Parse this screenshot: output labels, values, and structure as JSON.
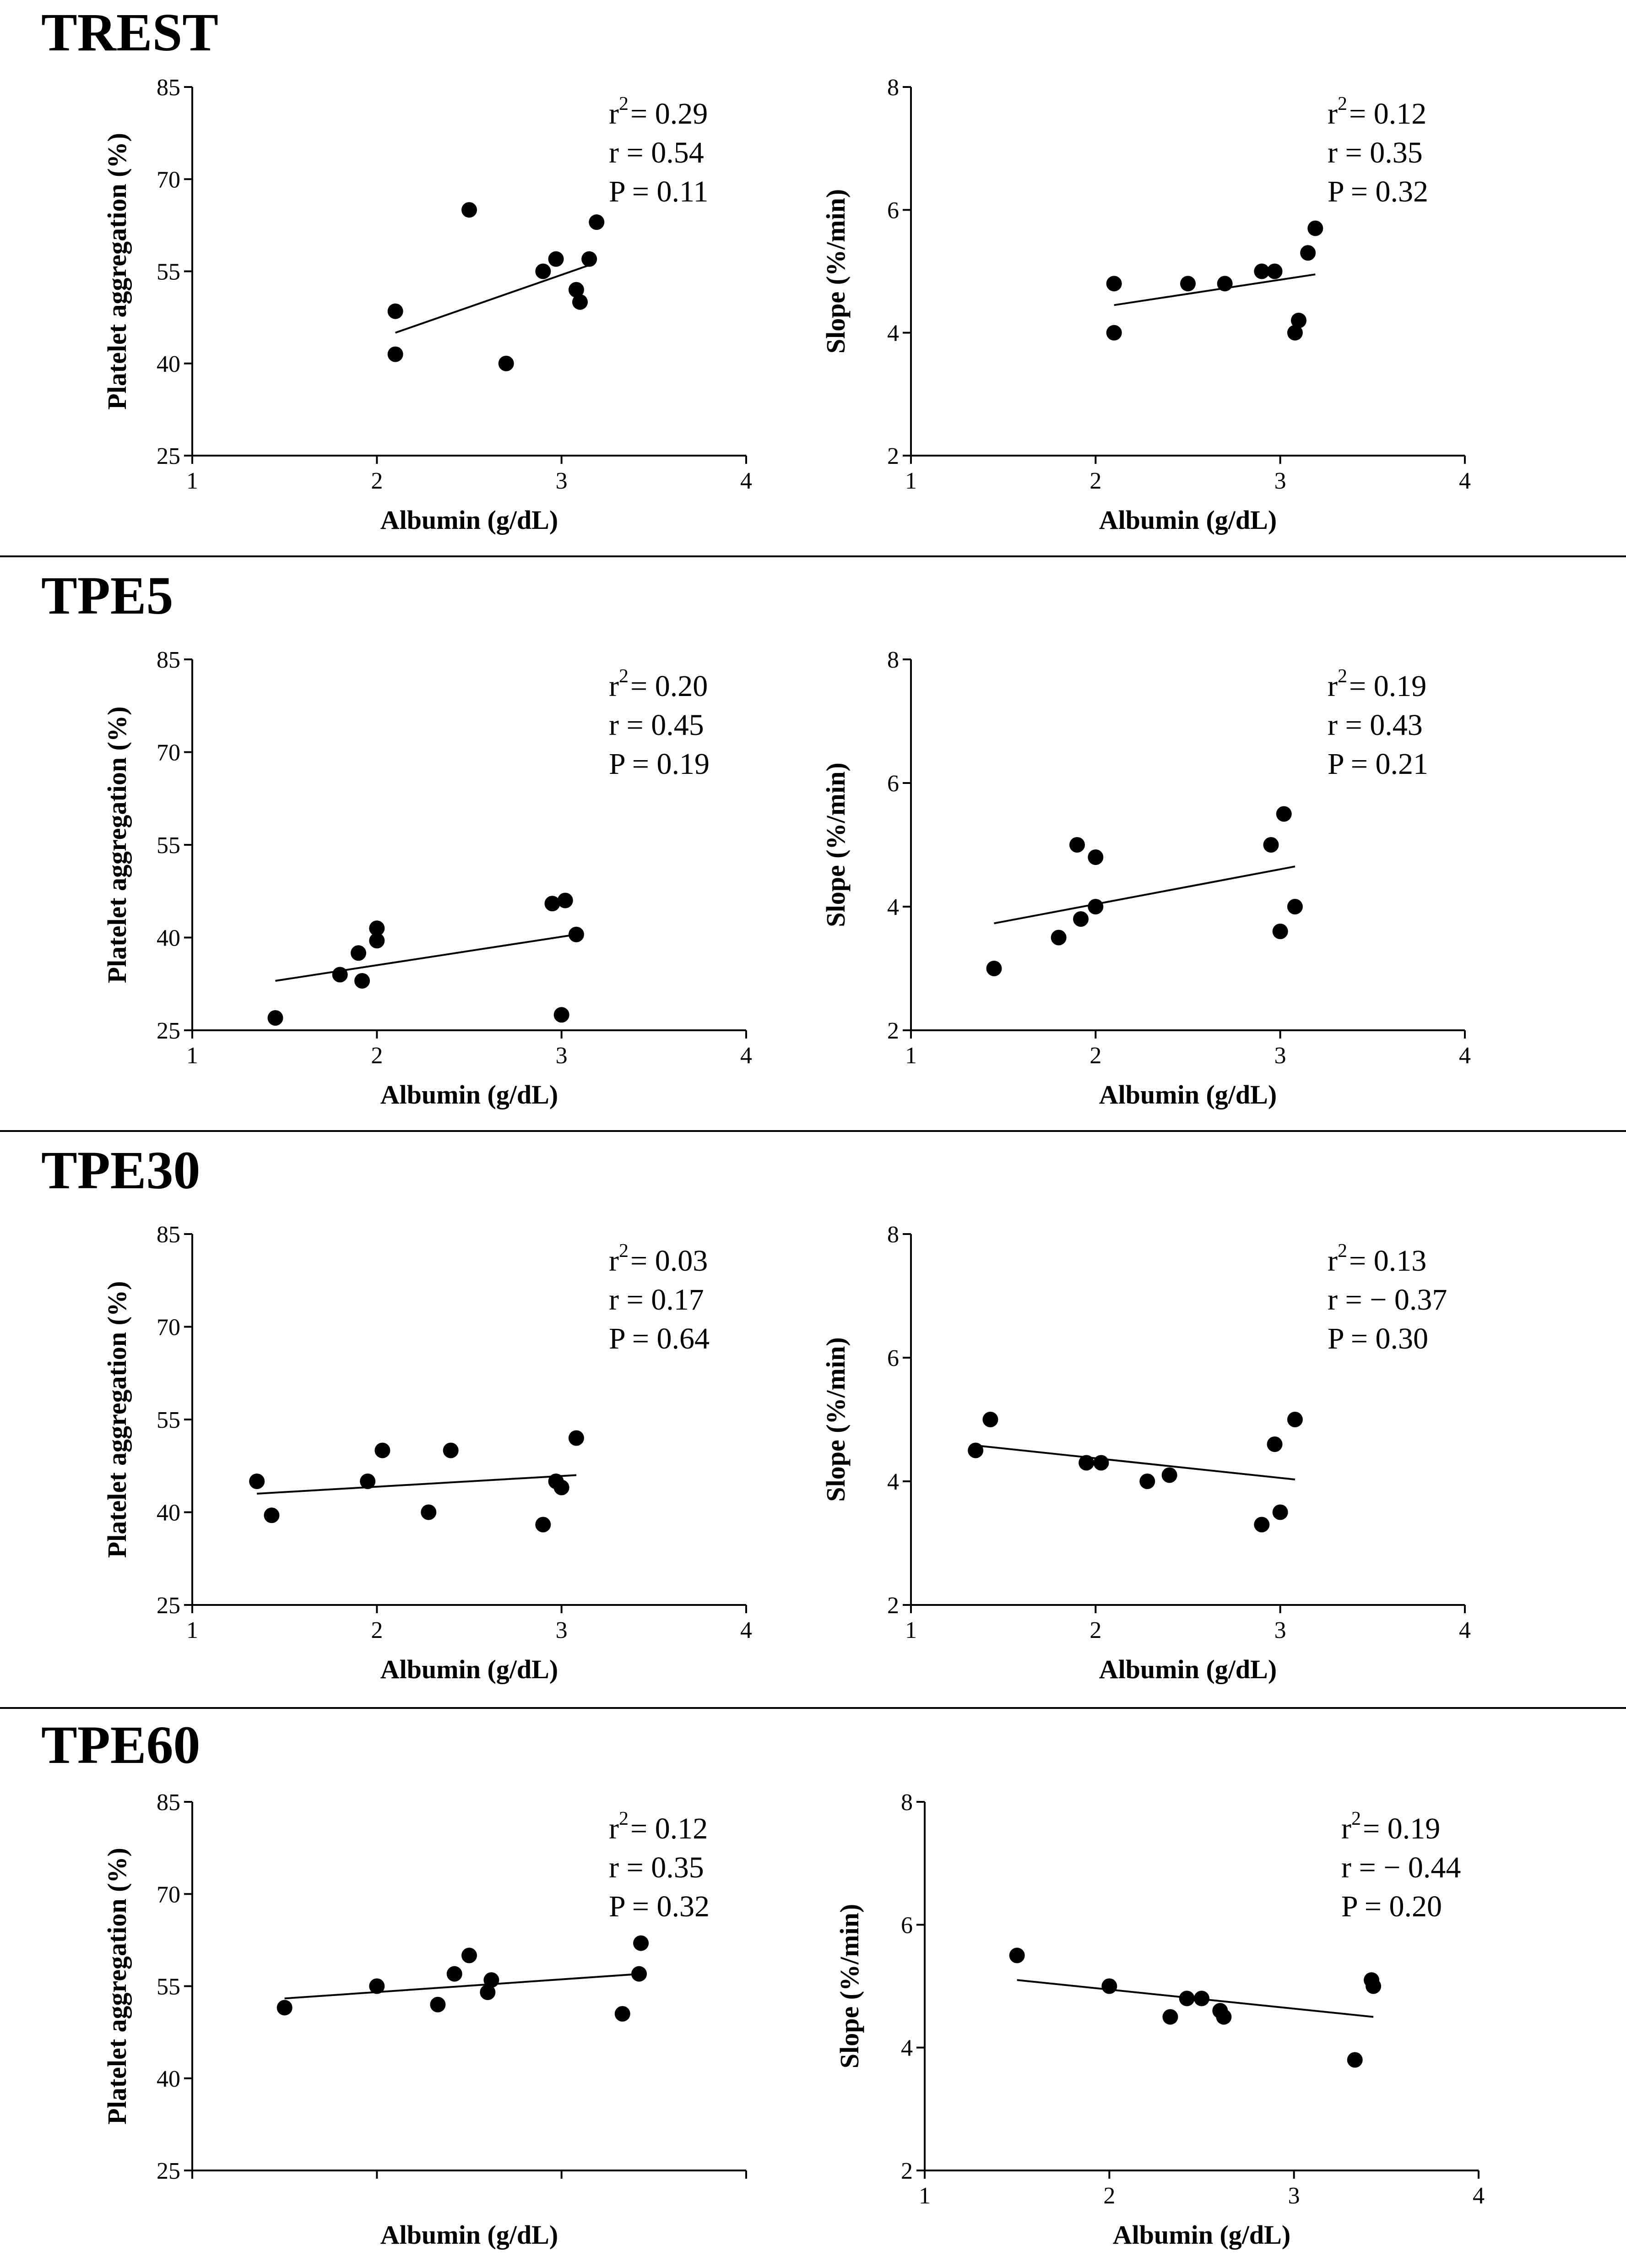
{
  "chart_data": [
    {
      "section": "TREST",
      "charts": [
        {
          "type": "scatter",
          "xlabel": "Albumin (g/dL)",
          "ylabel": "Platelet aggregation (%)",
          "xlim": [
            1,
            4
          ],
          "ylim": [
            25,
            85
          ],
          "xticks": [
            1,
            2,
            3,
            4
          ],
          "yticks": [
            25,
            40,
            55,
            70,
            85
          ],
          "x_tick_labels_visible": true,
          "points": [
            [
              2.1,
              48.5
            ],
            [
              2.1,
              41.5
            ],
            [
              2.5,
              65
            ],
            [
              2.7,
              40
            ],
            [
              2.9,
              55
            ],
            [
              2.97,
              57
            ],
            [
              3.08,
              52
            ],
            [
              3.1,
              50
            ],
            [
              3.15,
              57
            ],
            [
              3.19,
              63
            ]
          ],
          "fit": [
            [
              2.1,
              45
            ],
            [
              3.15,
              56
            ]
          ],
          "stats": {
            "r2": "= 0.29",
            "r": "r = 0.54",
            "p": "P = 0.11"
          }
        },
        {
          "type": "scatter",
          "xlabel": "Albumin (g/dL)",
          "ylabel": "Slope (%/min)",
          "xlim": [
            1,
            4
          ],
          "ylim": [
            2,
            8
          ],
          "xticks": [
            1,
            2,
            3,
            4
          ],
          "yticks": [
            2,
            4,
            6,
            8
          ],
          "x_tick_labels_visible": true,
          "points": [
            [
              2.1,
              4.0
            ],
            [
              2.1,
              4.8
            ],
            [
              2.5,
              4.8
            ],
            [
              2.7,
              4.8
            ],
            [
              2.9,
              5.0
            ],
            [
              2.97,
              5.0
            ],
            [
              3.08,
              4.0
            ],
            [
              3.1,
              4.2
            ],
            [
              3.15,
              5.3
            ],
            [
              3.19,
              5.7
            ]
          ],
          "fit": [
            [
              2.1,
              4.45
            ],
            [
              3.19,
              4.95
            ]
          ],
          "stats": {
            "r2": "= 0.12",
            "r": "r = 0.35",
            "p": "P = 0.32"
          }
        }
      ]
    },
    {
      "section": "TPE5",
      "charts": [
        {
          "type": "scatter",
          "xlabel": "Albumin (g/dL)",
          "ylabel": "Platelet aggregation (%)",
          "xlim": [
            1,
            4
          ],
          "ylim": [
            25,
            85
          ],
          "xticks": [
            1,
            2,
            3,
            4
          ],
          "yticks": [
            25,
            40,
            55,
            70,
            85
          ],
          "x_tick_labels_visible": true,
          "points": [
            [
              1.45,
              27
            ],
            [
              1.8,
              34
            ],
            [
              1.9,
              37.5
            ],
            [
              1.92,
              33
            ],
            [
              2.0,
              41.5
            ],
            [
              2.0,
              39.5
            ],
            [
              2.95,
              45.5
            ],
            [
              3.02,
              46
            ],
            [
              3.0,
              27.5
            ],
            [
              3.08,
              40.5
            ]
          ],
          "fit": [
            [
              1.45,
              33
            ],
            [
              3.08,
              40.5
            ]
          ],
          "stats": {
            "r2": "= 0.20",
            "r": "r = 0.45",
            "p": "P = 0.19"
          }
        },
        {
          "type": "scatter",
          "xlabel": "Albumin (g/dL)",
          "ylabel": "Slope (%/min)",
          "xlim": [
            1,
            4
          ],
          "ylim": [
            2,
            8
          ],
          "xticks": [
            1,
            2,
            3,
            4
          ],
          "yticks": [
            2,
            4,
            6,
            8
          ],
          "x_tick_labels_visible": true,
          "points": [
            [
              1.45,
              3.0
            ],
            [
              1.8,
              3.5
            ],
            [
              1.9,
              5.0
            ],
            [
              1.92,
              3.8
            ],
            [
              2.0,
              4.8
            ],
            [
              2.0,
              4.0
            ],
            [
              2.95,
              5.0
            ],
            [
              3.02,
              5.5
            ],
            [
              3.0,
              3.6
            ],
            [
              3.08,
              4.0
            ]
          ],
          "fit": [
            [
              1.45,
              3.73
            ],
            [
              3.08,
              4.65
            ]
          ],
          "stats": {
            "r2": "= 0.19",
            "r": "r = 0.43",
            "p": "P = 0.21"
          }
        }
      ]
    },
    {
      "section": "TPE30",
      "charts": [
        {
          "type": "scatter",
          "xlabel": "Albumin (g/dL)",
          "ylabel": "Platelet aggregation (%)",
          "xlim": [
            1,
            4
          ],
          "ylim": [
            25,
            85
          ],
          "xticks": [
            1,
            2,
            3,
            4
          ],
          "yticks": [
            25,
            40,
            55,
            70,
            85
          ],
          "x_tick_labels_visible": true,
          "points": [
            [
              1.35,
              45
            ],
            [
              1.43,
              39.5
            ],
            [
              1.95,
              45
            ],
            [
              2.03,
              50
            ],
            [
              2.28,
              40
            ],
            [
              2.4,
              50
            ],
            [
              2.9,
              38
            ],
            [
              2.97,
              45
            ],
            [
              3.0,
              44
            ],
            [
              3.08,
              52
            ]
          ],
          "fit": [
            [
              1.35,
              43
            ],
            [
              3.08,
              46
            ]
          ],
          "stats": {
            "r2": "= 0.03",
            "r": "r = 0.17",
            "p": "P = 0.64"
          }
        },
        {
          "type": "scatter",
          "xlabel": "Albumin (g/dL)",
          "ylabel": "Slope (%/min)",
          "xlim": [
            1,
            4
          ],
          "ylim": [
            2,
            8
          ],
          "xticks": [
            1,
            2,
            3,
            4
          ],
          "yticks": [
            2,
            4,
            6,
            8
          ],
          "x_tick_labels_visible": true,
          "points": [
            [
              1.35,
              4.5
            ],
            [
              1.43,
              5.0
            ],
            [
              1.95,
              4.3
            ],
            [
              2.03,
              4.3
            ],
            [
              2.28,
              4.0
            ],
            [
              2.4,
              4.1
            ],
            [
              2.9,
              3.3
            ],
            [
              2.97,
              4.6
            ],
            [
              3.0,
              3.5
            ],
            [
              3.08,
              5.0
            ]
          ],
          "fit": [
            [
              1.35,
              4.58
            ],
            [
              3.08,
              4.03
            ]
          ],
          "stats": {
            "r2": "= 0.13",
            "r": "r = − 0.37",
            "p": "P = 0.30"
          }
        }
      ]
    },
    {
      "section": "TPE60",
      "charts": [
        {
          "type": "scatter",
          "xlabel": "Albumin (g/dL)",
          "ylabel": "Platelet aggregation (%)",
          "xlim": [
            1,
            4
          ],
          "ylim": [
            25,
            85
          ],
          "xticks": [
            1,
            2,
            3,
            4
          ],
          "yticks": [
            25,
            40,
            55,
            70,
            85
          ],
          "x_tick_labels_visible": false,
          "points": [
            [
              1.5,
              51.5
            ],
            [
              2.0,
              55
            ],
            [
              2.33,
              52
            ],
            [
              2.42,
              57
            ],
            [
              2.5,
              60
            ],
            [
              2.6,
              54
            ],
            [
              2.62,
              56
            ],
            [
              3.33,
              50.5
            ],
            [
              3.42,
              57
            ],
            [
              3.43,
              62
            ]
          ],
          "fit": [
            [
              1.5,
              53
            ],
            [
              3.43,
              57
            ]
          ],
          "stats": {
            "r2": "= 0.12",
            "r": "r = 0.35",
            "p": "P = 0.32"
          }
        },
        {
          "type": "scatter",
          "xlabel": "Albumin (g/dL)",
          "ylabel": "Slope (%/min)",
          "xlim": [
            1,
            4
          ],
          "ylim": [
            2,
            8
          ],
          "xticks": [
            1,
            2,
            3,
            4
          ],
          "yticks": [
            2,
            4,
            6,
            8
          ],
          "x_tick_labels_visible": true,
          "points": [
            [
              1.5,
              5.5
            ],
            [
              2.0,
              5.0
            ],
            [
              2.33,
              4.5
            ],
            [
              2.42,
              4.8
            ],
            [
              2.5,
              4.8
            ],
            [
              2.6,
              4.6
            ],
            [
              2.62,
              4.5
            ],
            [
              3.33,
              3.8
            ],
            [
              3.42,
              5.1
            ],
            [
              3.43,
              5.0
            ]
          ],
          "fit": [
            [
              1.5,
              5.1
            ],
            [
              3.43,
              4.5
            ]
          ],
          "stats": {
            "r2": "= 0.19",
            "r": "r = − 0.44",
            "p": "P = 0.20"
          }
        }
      ]
    }
  ]
}
